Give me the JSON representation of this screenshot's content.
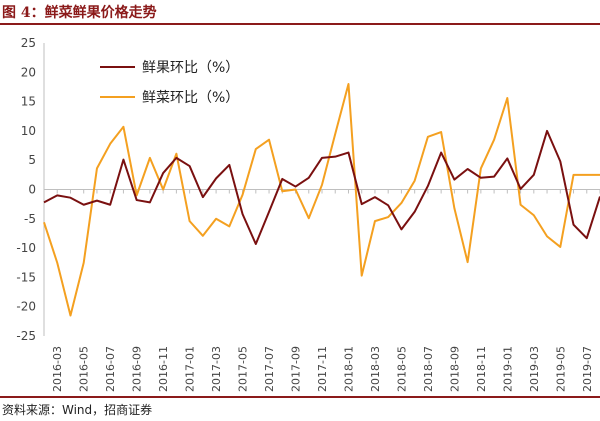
{
  "title": "图 4：鲜菜鲜果价格走势",
  "source": "资料来源：Wind，招商证券",
  "chart_data": {
    "type": "line",
    "title": "",
    "xlabel": "",
    "ylabel": "",
    "ylim": [
      -25,
      25
    ],
    "yticks": [
      -25,
      -20,
      -15,
      -10,
      -5,
      0,
      5,
      10,
      15,
      20,
      25
    ],
    "x_tick_labels": [
      "2016-03",
      "2016-05",
      "2016-07",
      "2016-09",
      "2016-11",
      "2017-01",
      "2017-03",
      "2017-05",
      "2017-07",
      "2017-09",
      "2017-11",
      "2018-01",
      "2018-03",
      "2018-05",
      "2018-07",
      "2018-09",
      "2018-11",
      "2019-01",
      "2019-03",
      "2019-05",
      "2019-07"
    ],
    "x": [
      "2016-02",
      "2016-03",
      "2016-04",
      "2016-05",
      "2016-06",
      "2016-07",
      "2016-08",
      "2016-09",
      "2016-10",
      "2016-11",
      "2016-12",
      "2017-01",
      "2017-02",
      "2017-03",
      "2017-04",
      "2017-05",
      "2017-06",
      "2017-07",
      "2017-08",
      "2017-09",
      "2017-10",
      "2017-11",
      "2017-12",
      "2018-01",
      "2018-02",
      "2018-03",
      "2018-04",
      "2018-05",
      "2018-06",
      "2018-07",
      "2018-08",
      "2018-09",
      "2018-10",
      "2018-11",
      "2018-12",
      "2019-01",
      "2019-02",
      "2019-03",
      "2019-04",
      "2019-05",
      "2019-06",
      "2019-07",
      "2019-08"
    ],
    "grid": false,
    "legend_position": "top-left",
    "series": [
      {
        "name": "鲜果环比（%）",
        "color": "#7a1010",
        "values": [
          -2.2,
          -1.0,
          -1.4,
          -2.6,
          -1.9,
          -2.6,
          5.1,
          -1.8,
          -2.2,
          2.8,
          5.4,
          4.0,
          -1.3,
          1.9,
          4.2,
          -4.2,
          -9.3,
          -3.8,
          1.8,
          0.5,
          2.0,
          5.4,
          5.6,
          6.3,
          -2.5,
          -1.3,
          -2.7,
          -6.8,
          -3.8,
          0.6,
          6.3,
          1.7,
          3.5,
          2.0,
          2.2,
          5.3,
          0.1,
          2.5,
          10.0,
          4.8,
          -6.0,
          -8.3,
          -1.2
        ]
      },
      {
        "name": "鲜菜环比（%）",
        "color": "#f4a020",
        "values": [
          -5.6,
          -12.5,
          -21.5,
          -12.5,
          3.6,
          7.8,
          10.7,
          -1.0,
          5.4,
          0.0,
          6.1,
          -5.4,
          -7.9,
          -5.0,
          -6.3,
          -0.9,
          6.9,
          8.5,
          -0.3,
          0.0,
          -4.9,
          0.8,
          9.5,
          18.0,
          -14.7,
          -5.4,
          -4.7,
          -2.3,
          1.5,
          9.0,
          9.8,
          -3.2,
          -12.4,
          3.6,
          8.5,
          15.6,
          -2.6,
          -4.4,
          -8.0,
          -9.8,
          2.5,
          2.5,
          2.5
        ]
      }
    ]
  }
}
